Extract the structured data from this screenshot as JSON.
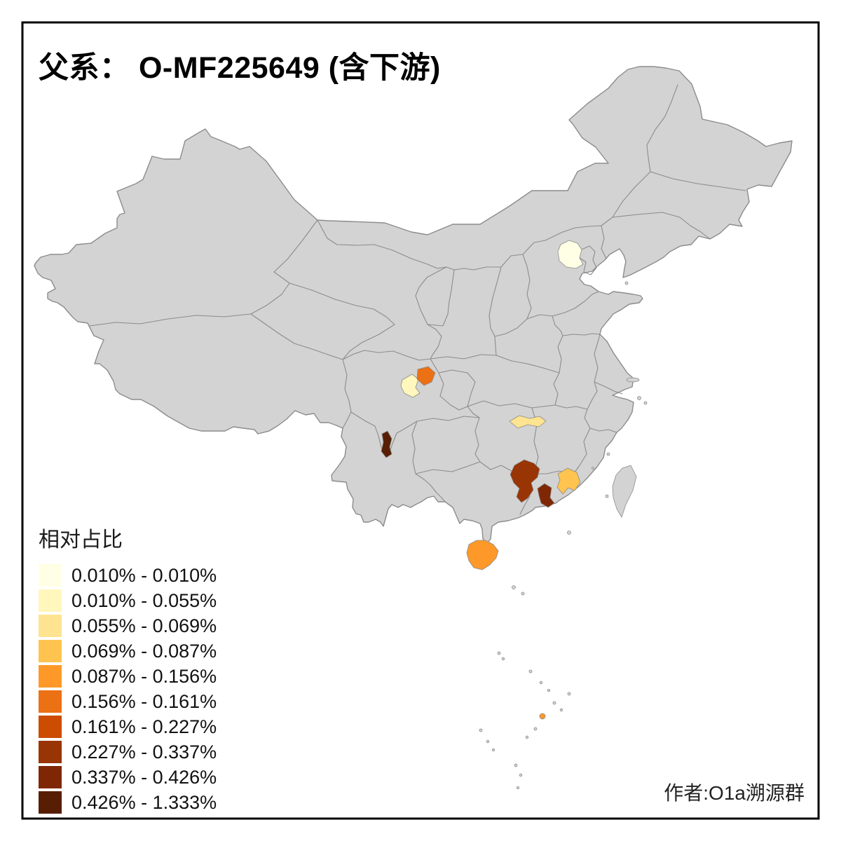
{
  "title": "父系： O-MF225649 (含下游)",
  "credit": "作者:O1a溯源群",
  "legend": {
    "title": "相对占比",
    "items": [
      {
        "label": "0.010% - 0.010%",
        "color": "#FFFFE5"
      },
      {
        "label": "0.010% - 0.055%",
        "color": "#FFF7BC"
      },
      {
        "label": "0.055% - 0.069%",
        "color": "#FEE391"
      },
      {
        "label": "0.069% - 0.087%",
        "color": "#FEC44F"
      },
      {
        "label": "0.087% - 0.156%",
        "color": "#FE9929"
      },
      {
        "label": "0.156% - 0.161%",
        "color": "#EC7014"
      },
      {
        "label": "0.161% - 0.227%",
        "color": "#CC4C02"
      },
      {
        "label": "0.227% - 0.337%",
        "color": "#993404"
      },
      {
        "label": "0.337% - 0.426%",
        "color": "#7F2704"
      },
      {
        "label": "0.426% - 1.333%",
        "color": "#571E03"
      }
    ]
  },
  "map": {
    "background": "#FFFFFF",
    "base_fill": "#D3D3D3",
    "boundary_color": "#8C8C8C",
    "frame_color": "#000000",
    "regions": [
      {
        "id": "beijing",
        "color": "#FFFFE5",
        "class_label": "0.010% - 0.010%"
      },
      {
        "id": "chengdu-west",
        "color": "#FFF7BC",
        "class_label": "0.010% - 0.055%"
      },
      {
        "id": "chengdu-east",
        "color": "#EC7014",
        "class_label": "0.156% - 0.161%"
      },
      {
        "id": "west-hunan",
        "color": "#FEE391",
        "class_label": "0.055% - 0.069%"
      },
      {
        "id": "south-sichuan",
        "color": "#571E03",
        "class_label": "0.426% - 1.333%"
      },
      {
        "id": "central-guangxi",
        "color": "#993404",
        "class_label": "0.227% - 0.337%"
      },
      {
        "id": "west-guangdong",
        "color": "#7F2704",
        "class_label": "0.337% - 0.426%"
      },
      {
        "id": "pearl-river-delta",
        "color": "#FEC44F",
        "class_label": "0.069% - 0.087%"
      },
      {
        "id": "hainan",
        "color": "#FE9929",
        "class_label": "0.087% - 0.156%"
      },
      {
        "id": "south-china-sea-islet",
        "color": "#FE9929",
        "class_label": "0.087% - 0.156%"
      }
    ]
  }
}
